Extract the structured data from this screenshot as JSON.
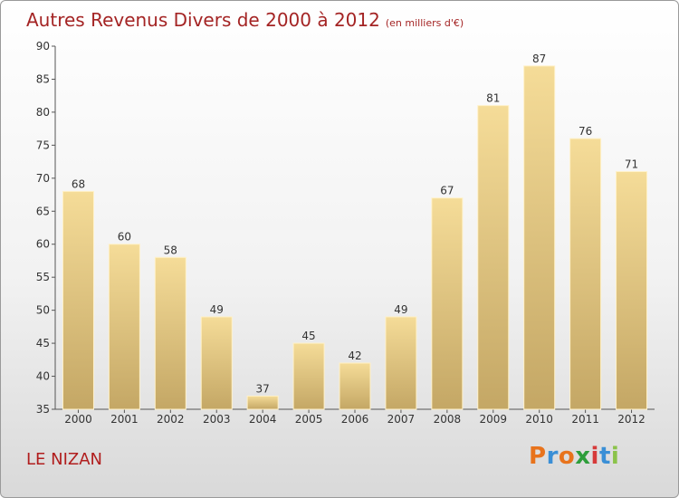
{
  "header": {
    "title": "Autres Revenus Divers de 2000 à 2012",
    "subtitle": "(en milliers d'€)"
  },
  "footer": {
    "place": "LE NIZAN",
    "logo": "Proxiti"
  },
  "chart_data": {
    "type": "bar",
    "title": "Autres Revenus Divers de 2000 à 2012",
    "subtitle": "(en milliers d'€)",
    "xlabel": "",
    "ylabel": "",
    "categories": [
      "2000",
      "2001",
      "2002",
      "2003",
      "2004",
      "2005",
      "2006",
      "2007",
      "2008",
      "2009",
      "2010",
      "2011",
      "2012"
    ],
    "values": [
      68,
      60,
      58,
      49,
      37,
      45,
      42,
      49,
      67,
      81,
      87,
      76,
      71
    ],
    "data_labels": [
      "68",
      "60",
      "58",
      "49",
      "37",
      "45",
      "42",
      "49",
      "67",
      "81",
      "87",
      "76",
      "71"
    ],
    "ylim": [
      35,
      90
    ],
    "yticks": [
      35,
      40,
      45,
      50,
      55,
      60,
      65,
      70,
      75,
      80,
      85,
      90
    ],
    "grid": false,
    "legend": "none",
    "colors": {
      "bar_top": "#f5dc98",
      "bar_bottom": "#c4a765",
      "bar_edge": "#fff1c8"
    }
  }
}
